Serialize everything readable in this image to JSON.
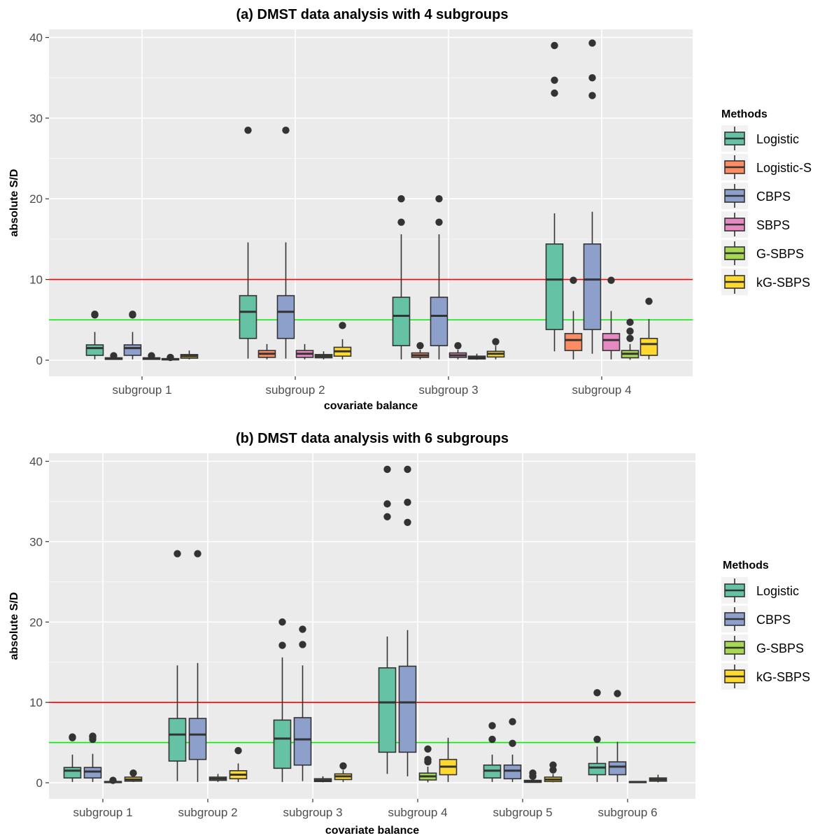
{
  "colors": {
    "Logistic": "#66c2a5",
    "Logistic-S": "#fc8d62",
    "CBPS": "#8da0cb",
    "SBPS": "#e78ac3",
    "G-SBPS": "#a6d854",
    "kG-SBPS": "#ffd92f",
    "panel_bg": "#ebebeb",
    "grid": "#ffffff",
    "box_outline": "#333333",
    "ref_line_10": "#ff0000",
    "ref_line_5": "#00ee00"
  },
  "chart_data": [
    {
      "type": "boxplot",
      "title": "(a) DMST data analysis with 4 subgroups",
      "xlabel": "covariate balance",
      "ylabel": "absolute S/D",
      "ylim": [
        -2,
        41
      ],
      "yticks": [
        0,
        10,
        20,
        30,
        40
      ],
      "reference_lines": [
        10,
        5
      ],
      "grid": true,
      "legend_position": "right",
      "legend_title": "Methods",
      "categories": [
        "subgroup 1",
        "subgroup 2",
        "subgroup 3",
        "subgroup 4"
      ],
      "series": [
        {
          "name": "Logistic",
          "boxes": [
            {
              "lower": 0.1,
              "q1": 0.6,
              "median": 1.5,
              "q3": 1.9,
              "upper": 3.5,
              "outliers": [
                5.6,
                5.7
              ]
            },
            {
              "lower": 0.2,
              "q1": 2.7,
              "median": 6.0,
              "q3": 8.0,
              "upper": 14.6,
              "outliers": [
                28.5
              ]
            },
            {
              "lower": 0.1,
              "q1": 1.8,
              "median": 5.5,
              "q3": 7.8,
              "upper": 15.6,
              "outliers": [
                17.1,
                20.0
              ]
            },
            {
              "lower": 1.1,
              "q1": 3.8,
              "median": 10.0,
              "q3": 14.4,
              "upper": 18.2,
              "outliers": [
                33.1,
                34.7,
                39.0
              ]
            }
          ]
        },
        {
          "name": "Logistic-S",
          "boxes": [
            {
              "lower": 0.05,
              "q1": 0.1,
              "median": 0.2,
              "q3": 0.3,
              "upper": 0.45,
              "outliers": [
                0.55
              ]
            },
            {
              "lower": 0.1,
              "q1": 0.35,
              "median": 0.8,
              "q3": 1.2,
              "upper": 2.0,
              "outliers": []
            },
            {
              "lower": 0.1,
              "q1": 0.35,
              "median": 0.6,
              "q3": 0.9,
              "upper": 1.3,
              "outliers": [
                1.8
              ]
            },
            {
              "lower": 0.1,
              "q1": 1.2,
              "median": 2.5,
              "q3": 3.3,
              "upper": 6.1,
              "outliers": [
                9.9
              ]
            }
          ]
        },
        {
          "name": "CBPS",
          "boxes": [
            {
              "lower": 0.1,
              "q1": 0.6,
              "median": 1.5,
              "q3": 1.9,
              "upper": 3.5,
              "outliers": [
                5.6,
                5.7
              ]
            },
            {
              "lower": 0.2,
              "q1": 2.7,
              "median": 6.0,
              "q3": 8.0,
              "upper": 14.6,
              "outliers": [
                28.5
              ]
            },
            {
              "lower": 0.1,
              "q1": 1.8,
              "median": 5.5,
              "q3": 7.8,
              "upper": 15.6,
              "outliers": [
                17.1,
                20.0
              ]
            },
            {
              "lower": 0.8,
              "q1": 3.8,
              "median": 10.0,
              "q3": 14.4,
              "upper": 18.4,
              "outliers": [
                32.8,
                35.0,
                39.3
              ]
            }
          ]
        },
        {
          "name": "SBPS",
          "boxes": [
            {
              "lower": 0.05,
              "q1": 0.1,
              "median": 0.2,
              "q3": 0.3,
              "upper": 0.45,
              "outliers": [
                0.55
              ]
            },
            {
              "lower": 0.1,
              "q1": 0.35,
              "median": 0.8,
              "q3": 1.2,
              "upper": 2.0,
              "outliers": []
            },
            {
              "lower": 0.1,
              "q1": 0.35,
              "median": 0.6,
              "q3": 0.9,
              "upper": 1.3,
              "outliers": [
                1.8
              ]
            },
            {
              "lower": 0.1,
              "q1": 1.2,
              "median": 2.5,
              "q3": 3.3,
              "upper": 6.1,
              "outliers": [
                9.9
              ]
            }
          ]
        },
        {
          "name": "G-SBPS",
          "boxes": [
            {
              "lower": 0.02,
              "q1": 0.05,
              "median": 0.1,
              "q3": 0.2,
              "upper": 0.3,
              "outliers": [
                0.35
              ]
            },
            {
              "lower": 0.1,
              "q1": 0.3,
              "median": 0.5,
              "q3": 0.7,
              "upper": 1.1,
              "outliers": []
            },
            {
              "lower": 0.05,
              "q1": 0.15,
              "median": 0.3,
              "q3": 0.5,
              "upper": 0.8,
              "outliers": []
            },
            {
              "lower": 0.05,
              "q1": 0.3,
              "median": 0.8,
              "q3": 1.2,
              "upper": 2.0,
              "outliers": [
                2.7,
                3.6,
                4.7
              ]
            }
          ]
        },
        {
          "name": "kG-SBPS",
          "boxes": [
            {
              "lower": 0.1,
              "q1": 0.25,
              "median": 0.5,
              "q3": 0.7,
              "upper": 1.2,
              "outliers": []
            },
            {
              "lower": 0.1,
              "q1": 0.5,
              "median": 1.1,
              "q3": 1.6,
              "upper": 2.6,
              "outliers": [
                4.3
              ]
            },
            {
              "lower": 0.1,
              "q1": 0.4,
              "median": 0.8,
              "q3": 1.1,
              "upper": 1.8,
              "outliers": [
                2.3
              ]
            },
            {
              "lower": 0.1,
              "q1": 0.6,
              "median": 2.0,
              "q3": 2.7,
              "upper": 5.1,
              "outliers": [
                7.3
              ]
            }
          ]
        }
      ]
    },
    {
      "type": "boxplot",
      "title": "(b) DMST data analysis with 6 subgroups",
      "xlabel": "covariate balance",
      "ylabel": "absolute S/D",
      "ylim": [
        -2,
        41
      ],
      "yticks": [
        0,
        10,
        20,
        30,
        40
      ],
      "reference_lines": [
        10,
        5
      ],
      "grid": true,
      "legend_position": "right",
      "legend_title": "Methods",
      "categories": [
        "subgroup 1",
        "subgroup 2",
        "subgroup 3",
        "subgroup 4",
        "subgroup 5",
        "subgroup 6"
      ],
      "series": [
        {
          "name": "Logistic",
          "boxes": [
            {
              "lower": 0.1,
              "q1": 0.6,
              "median": 1.5,
              "q3": 1.9,
              "upper": 3.5,
              "outliers": [
                5.6,
                5.7
              ]
            },
            {
              "lower": 0.2,
              "q1": 2.7,
              "median": 6.0,
              "q3": 8.0,
              "upper": 14.6,
              "outliers": [
                28.5
              ]
            },
            {
              "lower": 0.1,
              "q1": 1.8,
              "median": 5.5,
              "q3": 7.8,
              "upper": 15.6,
              "outliers": [
                17.1,
                20.0
              ]
            },
            {
              "lower": 1.1,
              "q1": 3.8,
              "median": 10.0,
              "q3": 14.3,
              "upper": 18.2,
              "outliers": [
                33.1,
                34.7,
                39.0
              ]
            },
            {
              "lower": 0.1,
              "q1": 0.6,
              "median": 1.5,
              "q3": 2.2,
              "upper": 3.5,
              "outliers": [
                5.4,
                7.1
              ]
            },
            {
              "lower": 0.1,
              "q1": 1.0,
              "median": 1.9,
              "q3": 2.4,
              "upper": 4.5,
              "outliers": [
                5.4,
                11.2
              ]
            }
          ]
        },
        {
          "name": "CBPS",
          "boxes": [
            {
              "lower": 0.1,
              "q1": 0.6,
              "median": 1.4,
              "q3": 1.9,
              "upper": 3.6,
              "outliers": [
                5.4,
                5.7,
                5.8
              ]
            },
            {
              "lower": 0.1,
              "q1": 2.9,
              "median": 6.0,
              "q3": 8.0,
              "upper": 14.9,
              "outliers": [
                28.5
              ]
            },
            {
              "lower": 0.2,
              "q1": 2.2,
              "median": 5.4,
              "q3": 8.1,
              "upper": 14.6,
              "outliers": [
                17.2,
                19.1
              ]
            },
            {
              "lower": 0.8,
              "q1": 3.8,
              "median": 10.0,
              "q3": 14.5,
              "upper": 19.0,
              "outliers": [
                32.4,
                34.9,
                39.0
              ]
            },
            {
              "lower": 0.1,
              "q1": 0.5,
              "median": 1.5,
              "q3": 2.2,
              "upper": 3.5,
              "outliers": [
                4.9,
                7.6
              ]
            },
            {
              "lower": 0.1,
              "q1": 1.0,
              "median": 2.0,
              "q3": 2.6,
              "upper": 5.1,
              "outliers": [
                11.1
              ]
            }
          ]
        },
        {
          "name": "G-SBPS",
          "boxes": [
            {
              "lower": 0.02,
              "q1": 0.05,
              "median": 0.1,
              "q3": 0.15,
              "upper": 0.25,
              "outliers": [
                0.3
              ]
            },
            {
              "lower": 0.1,
              "q1": 0.3,
              "median": 0.5,
              "q3": 0.7,
              "upper": 1.1,
              "outliers": []
            },
            {
              "lower": 0.05,
              "q1": 0.15,
              "median": 0.3,
              "q3": 0.5,
              "upper": 0.8,
              "outliers": []
            },
            {
              "lower": 0.05,
              "q1": 0.35,
              "median": 0.8,
              "q3": 1.2,
              "upper": 2.0,
              "outliers": [
                2.6,
                2.9,
                4.2
              ]
            },
            {
              "lower": 0.02,
              "q1": 0.05,
              "median": 0.15,
              "q3": 0.3,
              "upper": 0.6,
              "outliers": [
                0.8,
                1.2
              ]
            },
            {
              "lower": 0.02,
              "q1": 0.05,
              "median": 0.1,
              "q3": 0.15,
              "upper": 0.2,
              "outliers": []
            }
          ]
        },
        {
          "name": "kG-SBPS",
          "boxes": [
            {
              "lower": 0.1,
              "q1": 0.2,
              "median": 0.4,
              "q3": 0.7,
              "upper": 1.0,
              "outliers": [
                1.2
              ]
            },
            {
              "lower": 0.1,
              "q1": 0.5,
              "median": 1.0,
              "q3": 1.5,
              "upper": 2.4,
              "outliers": [
                4.0
              ]
            },
            {
              "lower": 0.1,
              "q1": 0.4,
              "median": 0.8,
              "q3": 1.1,
              "upper": 1.6,
              "outliers": [
                2.1
              ]
            },
            {
              "lower": 0.1,
              "q1": 1.0,
              "median": 2.0,
              "q3": 2.9,
              "upper": 5.6,
              "outliers": []
            },
            {
              "lower": 0.05,
              "q1": 0.15,
              "median": 0.4,
              "q3": 0.7,
              "upper": 1.1,
              "outliers": [
                1.6,
                2.2
              ]
            },
            {
              "lower": 0.05,
              "q1": 0.2,
              "median": 0.4,
              "q3": 0.6,
              "upper": 1.0,
              "outliers": []
            }
          ]
        }
      ]
    }
  ]
}
